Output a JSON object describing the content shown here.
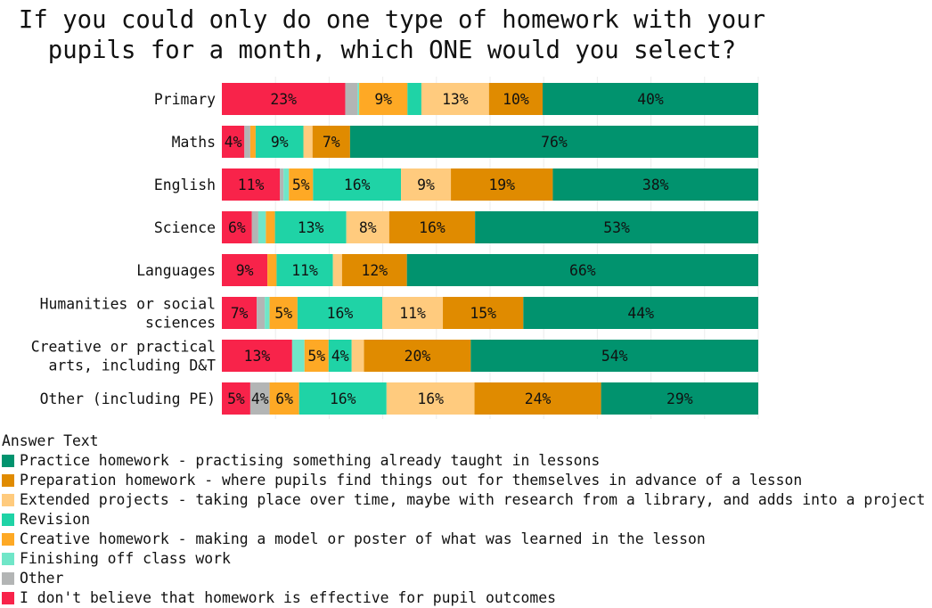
{
  "chart_data": {
    "type": "bar",
    "orientation": "horizontal",
    "stacked": true,
    "title": "If you could only do one type of homework with your pupils for a month, which ONE would you select?",
    "title_lines": [
      "If you could only do one type of homework with your",
      "pupils for a month, which ONE would you select?"
    ],
    "xlabel": "",
    "ylabel": "",
    "xlim": [
      0,
      100
    ],
    "grid": true,
    "legend_title": "Answer Text",
    "legend_position": "bottom-left",
    "categories": [
      "Primary",
      "Maths",
      "English",
      "Science",
      "Languages",
      "Humanities or social sciences",
      "Creative or practical arts, including D&T",
      "Other (including PE)"
    ],
    "category_lines": [
      [
        "Primary"
      ],
      [
        "Maths"
      ],
      [
        "English"
      ],
      [
        "Science"
      ],
      [
        "Languages"
      ],
      [
        "Humanities or social",
        "sciences"
      ],
      [
        "Creative or practical",
        "arts, including D&T"
      ],
      [
        "Other (including PE)"
      ]
    ],
    "series": [
      {
        "name": "I don't believe that homework is effective for pupil outcomes",
        "color": "#f8234a",
        "values": [
          23,
          4.2,
          10.8,
          5.6,
          8.5,
          6.5,
          13.1,
          5.3
        ]
      },
      {
        "name": "Other",
        "color": "#b3b5b5",
        "values": [
          2.3,
          1.1,
          0.7,
          1.2,
          0,
          1.5,
          0,
          3.6
        ]
      },
      {
        "name": "Finishing off class work",
        "color": "#70e6c8",
        "values": [
          0.3,
          0,
          1,
          1.4,
          0,
          0.9,
          2.3,
          0
        ]
      },
      {
        "name": "Creative homework - making a model or poster of what was learned in the lesson",
        "color": "#fea925",
        "values": [
          9,
          1,
          4.5,
          1.7,
          1.7,
          5.2,
          4.5,
          5.5
        ]
      },
      {
        "name": "Revision",
        "color": "#1fd3a6",
        "values": [
          2.6,
          8.9,
          16.4,
          13.3,
          10.5,
          15.8,
          4.3,
          16.3
        ]
      },
      {
        "name": "Extended projects - taking place over time, maybe with research from a library, and adds into a project",
        "color": "#ffcb7e",
        "values": [
          12.6,
          1.7,
          9.3,
          8,
          1.7,
          11.3,
          2.3,
          16.4
        ]
      },
      {
        "name": "Preparation homework - where pupils find things out for themselves in advance of a lesson",
        "color": "#e08b00",
        "values": [
          10,
          7,
          19,
          16,
          12.1,
          15,
          19.9,
          23.6
        ]
      },
      {
        "name": "Practice homework - practising something already taught in lessons",
        "color": "#01936e",
        "values": [
          40.2,
          76.1,
          38.3,
          52.8,
          65.5,
          43.8,
          53.6,
          29.3
        ]
      }
    ],
    "legend_order": [
      7,
      6,
      5,
      4,
      3,
      2,
      1,
      0
    ]
  }
}
